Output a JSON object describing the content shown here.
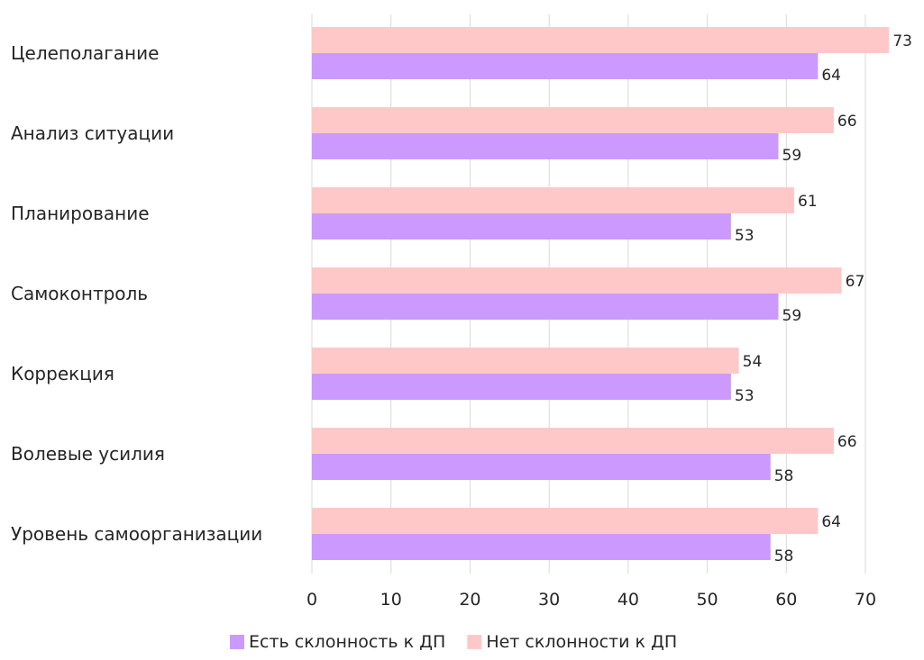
{
  "chart_data": {
    "type": "bar",
    "orientation": "horizontal",
    "categories": [
      "Целеполагание",
      "Анализ ситуации",
      "Планирование",
      "Самоконтроль",
      "Коррекция",
      "Волевые усилия",
      "Уровень самоорганизации"
    ],
    "series": [
      {
        "name": "Нет склонности к ДП",
        "color": "#ffc8c8",
        "values": [
          73,
          66,
          61,
          67,
          54,
          66,
          64
        ]
      },
      {
        "name": "Есть склонность к ДП",
        "color": "#cc99ff",
        "values": [
          64,
          59,
          53,
          59,
          53,
          58,
          58
        ]
      }
    ],
    "xlim": [
      0,
      70
    ],
    "xticks": [
      0,
      10,
      20,
      30,
      40,
      50,
      60,
      70
    ],
    "grid": true,
    "data_labels": true,
    "legend_position": "bottom",
    "legend_order": [
      "Есть склонность к ДП",
      "Нет склонности к ДП"
    ],
    "title": "",
    "xlabel": "",
    "ylabel": ""
  }
}
